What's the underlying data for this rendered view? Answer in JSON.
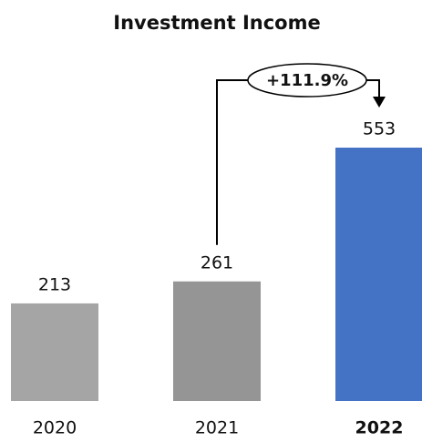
{
  "chart_data": {
    "type": "bar",
    "title": "Investment Income",
    "categories": [
      "2020",
      "2021",
      "2022"
    ],
    "values": [
      213,
      261,
      553
    ],
    "colors": [
      "#a5a5a5",
      "#959595",
      "#4472c4"
    ],
    "highlight": "2022",
    "annotation": "+111.9%"
  }
}
